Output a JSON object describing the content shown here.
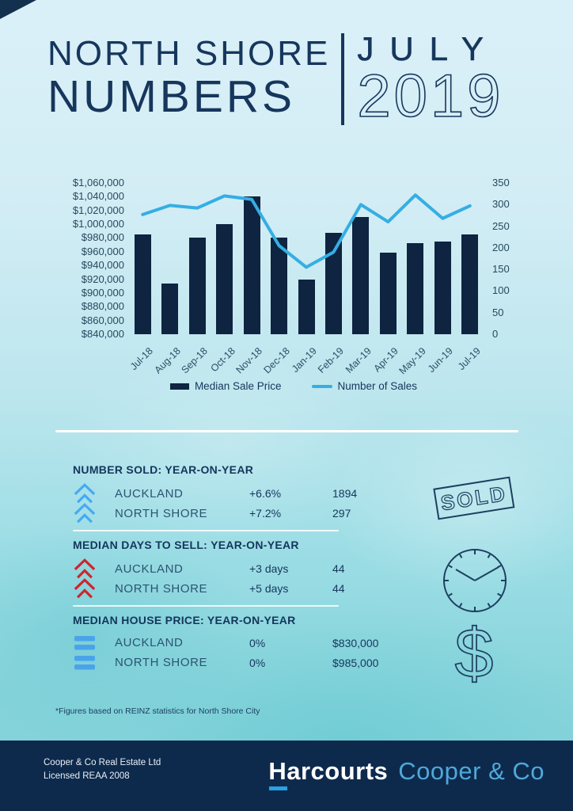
{
  "header": {
    "title_line1": "NORTH SHORE",
    "title_line2": "NUMBERS",
    "month": "JULY",
    "year": "2019"
  },
  "chart_data": {
    "type": "bar+line combo",
    "categories": [
      "Jul-18",
      "Aug-18",
      "Sep-18",
      "Oct-18",
      "Nov-18",
      "Dec-18",
      "Jan-19",
      "Feb-19",
      "Mar-19",
      "Apr-19",
      "May-19",
      "Jun-19",
      "Jul-19"
    ],
    "series": [
      {
        "name": "Median Sale Price",
        "type": "bar",
        "axis": "left",
        "values": [
          985000,
          914000,
          980000,
          1000000,
          1041000,
          980000,
          920000,
          988000,
          1010000,
          959000,
          972000,
          975000,
          985000
        ]
      },
      {
        "name": "Number of Sales",
        "type": "line",
        "axis": "right",
        "values": [
          277,
          298,
          292,
          320,
          312,
          205,
          155,
          190,
          300,
          260,
          322,
          268,
          297
        ]
      }
    ],
    "left_axis": {
      "min": 840000,
      "max": 1060000,
      "step": 20000,
      "labels": [
        "$1,060,000",
        "$1,040,000",
        "$1,020,000",
        "$1,000,000",
        "$980,000",
        "$960,000",
        "$940,000",
        "$920,000",
        "$900,000",
        "$880,000",
        "$860,000",
        "$840,000"
      ]
    },
    "right_axis": {
      "min": 0,
      "max": 350,
      "step": 50,
      "labels": [
        "350",
        "300",
        "250",
        "200",
        "150",
        "100",
        "50",
        "0"
      ]
    },
    "legend": [
      {
        "label": "Median Sale Price",
        "swatch": "bar"
      },
      {
        "label": "Number of Sales",
        "swatch": "line"
      }
    ],
    "grid": false,
    "legend_position": "bottom"
  },
  "sections": [
    {
      "heading": "NUMBER SOLD: YEAR-ON-YEAR",
      "icon": "double-chevron-up-icon",
      "icon_color": "#45aaf2",
      "rows": [
        {
          "label": "AUCKLAND",
          "change": "+6.6%",
          "value": "1894"
        },
        {
          "label": "NORTH SHORE",
          "change": "+7.2%",
          "value": "297"
        }
      ]
    },
    {
      "heading": "MEDIAN DAYS TO SELL: YEAR-ON-YEAR",
      "icon": "double-chevron-up-icon",
      "icon_color": "#d0242b",
      "rows": [
        {
          "label": "AUCKLAND",
          "change": "+3 days",
          "value": "44"
        },
        {
          "label": "NORTH SHORE",
          "change": "+5 days",
          "value": "44"
        }
      ]
    },
    {
      "heading": "MEDIAN HOUSE PRICE: YEAR-ON-YEAR",
      "icon": "equals-icon",
      "icon_color": "#4aa3ea",
      "rows": [
        {
          "label": "AUCKLAND",
          "change": "0%",
          "value": "$830,000"
        },
        {
          "label": "NORTH SHORE",
          "change": "0%",
          "value": "$985,000"
        }
      ]
    }
  ],
  "decor": {
    "sold_stamp_text": "SOLD",
    "icons": [
      "sold-stamp-icon",
      "clock-icon",
      "dollar-icon"
    ]
  },
  "footnote": "*Figures based on REINZ statistics for North Shore City",
  "footer": {
    "line1": "Cooper & Co Real Estate Ltd",
    "line2": "Licensed REAA 2008",
    "brand_bold": "Harcourts",
    "brand_light": "Cooper & Co"
  },
  "colors": {
    "navy_text": "#16365c",
    "bar_fill": "#0e2440",
    "sales_line": "#35aee3",
    "chevron_blue": "#45aaf2",
    "chevron_red": "#d0242b",
    "equals_blue": "#4aa3ea",
    "outline_icon": "#1d3f60",
    "footer_bg": "#0d2a4d",
    "logo_light_blue": "#4fa8d9",
    "logo_underline": "#2b9fe3"
  }
}
